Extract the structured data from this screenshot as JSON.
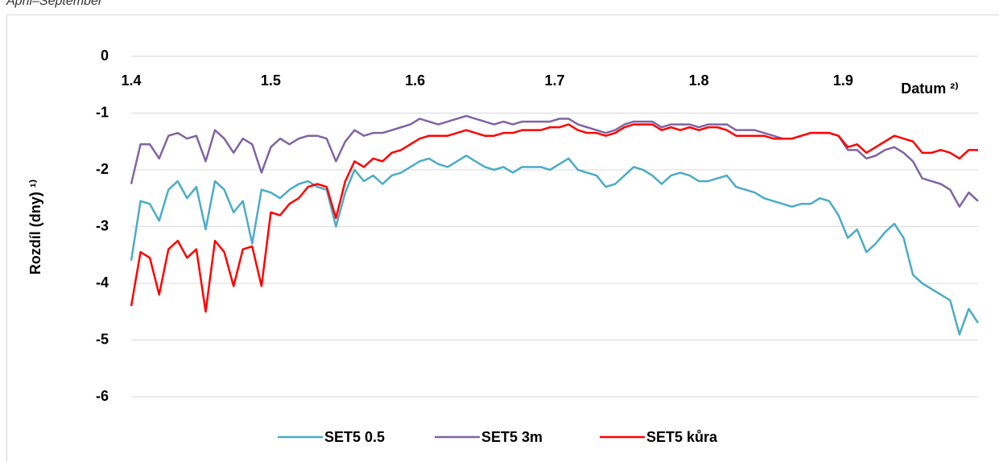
{
  "chart_data": {
    "type": "line",
    "subtitle": "April–September",
    "y_label": "Rozdíl (dny) ¹⁾",
    "x_label": "Datum ²⁾",
    "x": [
      0,
      2,
      4,
      6,
      8,
      10,
      12,
      14,
      16,
      18,
      20,
      22,
      24,
      26,
      28,
      30,
      32,
      34,
      36,
      38,
      40,
      42,
      44,
      46,
      48,
      50,
      52,
      54,
      56,
      58,
      60,
      62,
      64,
      66,
      68,
      70,
      72,
      74,
      76,
      78,
      80,
      82,
      84,
      86,
      88,
      90,
      92,
      94,
      96,
      98,
      100,
      102,
      104,
      106,
      108,
      110,
      112,
      114,
      116,
      118,
      120,
      122,
      124,
      126,
      128,
      130,
      132,
      134,
      136,
      138,
      140,
      142,
      144,
      146,
      148,
      150,
      152,
      154,
      156,
      158,
      160,
      162,
      164,
      166,
      168,
      170,
      172,
      174,
      176,
      178,
      180,
      182
    ],
    "xlim": [
      0,
      182
    ],
    "xticks": [
      {
        "value": 0,
        "label": "1.4"
      },
      {
        "value": 30,
        "label": "1.5"
      },
      {
        "value": 61,
        "label": "1.6"
      },
      {
        "value": 91,
        "label": "1.7"
      },
      {
        "value": 122,
        "label": "1.8"
      },
      {
        "value": 153,
        "label": "1.9"
      }
    ],
    "ylim": [
      -6,
      0
    ],
    "yticks": [
      0,
      -1,
      -2,
      -3,
      -4,
      -5,
      -6
    ],
    "grid": true,
    "legend": "bottom",
    "series": [
      {
        "name": "SET5 0.5",
        "color": "#4bacc6",
        "values": [
          -3.6,
          -2.55,
          -2.6,
          -2.9,
          -2.35,
          -2.2,
          -2.5,
          -2.3,
          -3.05,
          -2.2,
          -2.35,
          -2.75,
          -2.55,
          -3.3,
          -2.35,
          -2.4,
          -2.5,
          -2.35,
          -2.25,
          -2.2,
          -2.3,
          -2.35,
          -3.0,
          -2.4,
          -2.0,
          -2.2,
          -2.1,
          -2.25,
          -2.1,
          -2.05,
          -1.95,
          -1.85,
          -1.8,
          -1.9,
          -1.95,
          -1.85,
          -1.75,
          -1.85,
          -1.95,
          -2.0,
          -1.95,
          -2.05,
          -1.95,
          -1.95,
          -1.95,
          -2.0,
          -1.9,
          -1.8,
          -2.0,
          -2.05,
          -2.1,
          -2.3,
          -2.25,
          -2.1,
          -1.95,
          -2.0,
          -2.1,
          -2.25,
          -2.1,
          -2.05,
          -2.1,
          -2.2,
          -2.2,
          -2.15,
          -2.1,
          -2.3,
          -2.35,
          -2.4,
          -2.5,
          -2.55,
          -2.6,
          -2.65,
          -2.6,
          -2.6,
          -2.5,
          -2.55,
          -2.8,
          -3.2,
          -3.05,
          -3.45,
          -3.3,
          -3.1,
          -2.95,
          -3.2,
          -3.85,
          -4.0,
          -4.1,
          -4.2,
          -4.3,
          -4.9,
          -4.45,
          -4.7
        ]
      },
      {
        "name": "SET5 3m",
        "color": "#8064a2",
        "values": [
          -2.25,
          -1.55,
          -1.55,
          -1.8,
          -1.4,
          -1.35,
          -1.45,
          -1.4,
          -1.85,
          -1.3,
          -1.45,
          -1.7,
          -1.45,
          -1.55,
          -2.05,
          -1.6,
          -1.45,
          -1.55,
          -1.45,
          -1.4,
          -1.4,
          -1.45,
          -1.85,
          -1.5,
          -1.3,
          -1.4,
          -1.35,
          -1.35,
          -1.3,
          -1.25,
          -1.2,
          -1.1,
          -1.15,
          -1.2,
          -1.15,
          -1.1,
          -1.05,
          -1.1,
          -1.15,
          -1.2,
          -1.15,
          -1.2,
          -1.15,
          -1.15,
          -1.15,
          -1.15,
          -1.1,
          -1.1,
          -1.2,
          -1.25,
          -1.3,
          -1.35,
          -1.3,
          -1.2,
          -1.15,
          -1.15,
          -1.15,
          -1.25,
          -1.2,
          -1.2,
          -1.2,
          -1.25,
          -1.2,
          -1.2,
          -1.2,
          -1.3,
          -1.3,
          -1.3,
          -1.35,
          -1.4,
          -1.45,
          -1.45,
          -1.4,
          -1.35,
          -1.35,
          -1.35,
          -1.4,
          -1.65,
          -1.65,
          -1.8,
          -1.75,
          -1.65,
          -1.6,
          -1.7,
          -1.85,
          -2.15,
          -2.2,
          -2.25,
          -2.35,
          -2.65,
          -2.4,
          -2.55
        ]
      },
      {
        "name": "SET5 kůra",
        "color": "#ff0000",
        "values": [
          -4.4,
          -3.45,
          -3.55,
          -4.2,
          -3.4,
          -3.25,
          -3.55,
          -3.4,
          -4.5,
          -3.25,
          -3.45,
          -4.05,
          -3.4,
          -3.35,
          -4.05,
          -2.75,
          -2.8,
          -2.6,
          -2.5,
          -2.3,
          -2.25,
          -2.3,
          -2.85,
          -2.2,
          -1.85,
          -1.95,
          -1.8,
          -1.85,
          -1.7,
          -1.65,
          -1.55,
          -1.45,
          -1.4,
          -1.4,
          -1.4,
          -1.35,
          -1.3,
          -1.35,
          -1.4,
          -1.4,
          -1.35,
          -1.35,
          -1.3,
          -1.3,
          -1.3,
          -1.25,
          -1.25,
          -1.2,
          -1.3,
          -1.35,
          -1.35,
          -1.4,
          -1.35,
          -1.25,
          -1.2,
          -1.2,
          -1.2,
          -1.3,
          -1.25,
          -1.3,
          -1.25,
          -1.3,
          -1.25,
          -1.25,
          -1.3,
          -1.4,
          -1.4,
          -1.4,
          -1.4,
          -1.45,
          -1.45,
          -1.45,
          -1.4,
          -1.35,
          -1.35,
          -1.35,
          -1.4,
          -1.6,
          -1.55,
          -1.7,
          -1.6,
          -1.5,
          -1.4,
          -1.45,
          -1.5,
          -1.7,
          -1.7,
          -1.65,
          -1.7,
          -1.8,
          -1.65,
          -1.65
        ]
      }
    ]
  }
}
